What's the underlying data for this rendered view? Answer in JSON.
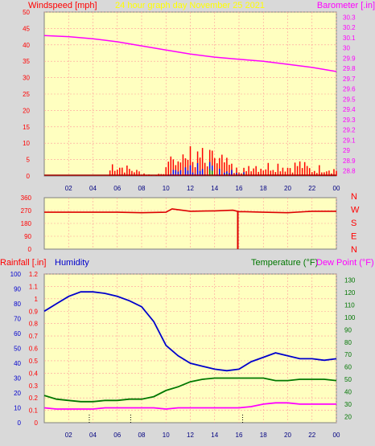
{
  "header": {
    "left_label": "Windspeed [mph]",
    "center_label": "24 hour graph day   November 25 2021",
    "right_label": "Barometer [.in]"
  },
  "panel2": {
    "dir_letters": [
      "N",
      "W",
      "S",
      "E",
      "N"
    ]
  },
  "panel3": {
    "rain_label": "Rainfall [.in]",
    "humidity_label": "Humidity",
    "temp_label": "Temperature (°F)",
    "dew_label": "Dew Point (°F)"
  },
  "colors": {
    "wind": "#ff0000",
    "wind_gust": "#0000ff",
    "wind_avg": "#008000",
    "barometer": "#ff00ff",
    "direction": "#dd0000",
    "humidity": "#0000cc",
    "temperature": "#007700",
    "dewpoint": "#ff00ff",
    "plot_bg": "#ffffc0",
    "grid": "#ff9a9a"
  },
  "chart_data": [
    {
      "type": "line",
      "title": "24 hour graph day   November 25 2021",
      "x_ticks": [
        "02",
        "04",
        "06",
        "08",
        "10",
        "12",
        "14",
        "16",
        "18",
        "20",
        "22",
        "00"
      ],
      "left_axis": {
        "label": "Windspeed [mph]",
        "ticks": [
          0,
          5,
          10,
          15,
          20,
          25,
          30,
          35,
          40,
          45,
          50
        ],
        "range": [
          0,
          50
        ]
      },
      "right_axis": {
        "label": "Barometer [.in]",
        "ticks": [
          "28.8",
          "28.9",
          "29",
          "29.1",
          "29.2",
          "29.3",
          "29.4",
          "29.5",
          "29.6",
          "29.7",
          "29.8",
          "29.9",
          "30",
          "30.1",
          "30.2",
          "30.3"
        ],
        "range": [
          28.75,
          30.35
        ]
      },
      "series": [
        {
          "name": "Barometer [.in]",
          "axis": "right",
          "x": [
            0,
            2,
            4,
            6,
            8,
            10,
            12,
            14,
            16,
            18,
            20,
            22,
            24
          ],
          "y": [
            30.12,
            30.11,
            30.09,
            30.06,
            30.02,
            29.98,
            29.94,
            29.91,
            29.89,
            29.87,
            29.84,
            29.81,
            29.77
          ]
        },
        {
          "name": "Windspeed [mph]",
          "axis": "left",
          "x": [
            0,
            5.3,
            5.5,
            9,
            10,
            11,
            11.5,
            12,
            13,
            14,
            15,
            16,
            17,
            18,
            19,
            20,
            21,
            22,
            23,
            24
          ],
          "y": [
            0,
            0,
            4,
            0,
            2,
            8,
            10,
            8,
            7,
            6,
            4,
            2,
            4,
            3,
            4,
            3,
            4,
            2,
            3,
            2
          ]
        }
      ]
    },
    {
      "type": "line",
      "title": "",
      "x_ticks": [],
      "left_axis": {
        "label": "",
        "ticks": [
          0,
          90,
          180,
          270,
          360
        ],
        "range": [
          0,
          360
        ]
      },
      "series": [
        {
          "name": "",
          "x": [
            0,
            6,
            8,
            10,
            10.5,
            12,
            14,
            15.5,
            16,
            16.5,
            18,
            20,
            22,
            24
          ],
          "y": [
            258,
            258,
            255,
            258,
            282,
            265,
            268,
            272,
            262,
            262,
            258,
            255,
            265,
            265
          ]
        }
      ]
    },
    {
      "type": "line",
      "title": "",
      "x_ticks": [
        "02",
        "04",
        "06",
        "08",
        "10",
        "12",
        "14",
        "16",
        "18",
        "20",
        "22",
        "00"
      ],
      "left_axis": {
        "label": "Rainfall [.in]",
        "ticks": [
          "0",
          "0.1",
          "0.2",
          "0.3",
          "0.4",
          "0.5",
          "0.6",
          "0.7",
          "0.8",
          "0.9",
          "1",
          "1.1",
          "1.2"
        ],
        "range": [
          0,
          1.2
        ]
      },
      "left_axis2": {
        "label": "Humidity",
        "ticks": [
          0,
          10,
          20,
          30,
          40,
          50,
          60,
          70,
          80,
          90,
          100
        ],
        "range": [
          0,
          100
        ]
      },
      "right_axis": {
        "label": "Temperature (°F)",
        "ticks": [
          20,
          30,
          40,
          50,
          60,
          70,
          80,
          90,
          100,
          110,
          120,
          130
        ],
        "range": [
          15,
          135
        ]
      },
      "series": [
        {
          "name": "Humidity",
          "axis": "left2",
          "x": [
            0,
            1,
            2,
            3,
            4,
            5,
            6,
            7,
            8,
            9,
            10,
            11,
            12,
            13,
            14,
            15,
            16,
            17,
            18,
            19,
            20,
            21,
            22,
            23,
            24
          ],
          "y": [
            75,
            80,
            85,
            88,
            88,
            87,
            85,
            82,
            78,
            68,
            52,
            45,
            40,
            38,
            36,
            35,
            36,
            41,
            44,
            47,
            45,
            43,
            43,
            42,
            43
          ]
        },
        {
          "name": "Temperature (°F)",
          "axis": "right",
          "x": [
            0,
            1,
            2,
            3,
            4,
            5,
            6,
            7,
            8,
            9,
            10,
            11,
            12,
            13,
            14,
            15,
            16,
            17,
            18,
            19,
            20,
            21,
            22,
            23,
            24
          ],
          "y": [
            37,
            34,
            33,
            32,
            32,
            33,
            33,
            34,
            34,
            36,
            41,
            44,
            48,
            50,
            51,
            51,
            51,
            51,
            51,
            49,
            49,
            50,
            50,
            50,
            49
          ]
        },
        {
          "name": "Dew Point (°F)",
          "axis": "right",
          "x": [
            0,
            1,
            2,
            3,
            4,
            5,
            6,
            7,
            8,
            9,
            10,
            11,
            12,
            13,
            14,
            15,
            16,
            17,
            18,
            19,
            20,
            21,
            22,
            23,
            24
          ],
          "y": [
            27,
            26,
            26,
            26,
            26,
            27,
            27,
            27,
            27,
            27,
            26,
            27,
            27,
            27,
            27,
            27,
            27,
            28,
            30,
            31,
            31,
            30,
            30,
            30,
            30
          ]
        }
      ]
    }
  ]
}
